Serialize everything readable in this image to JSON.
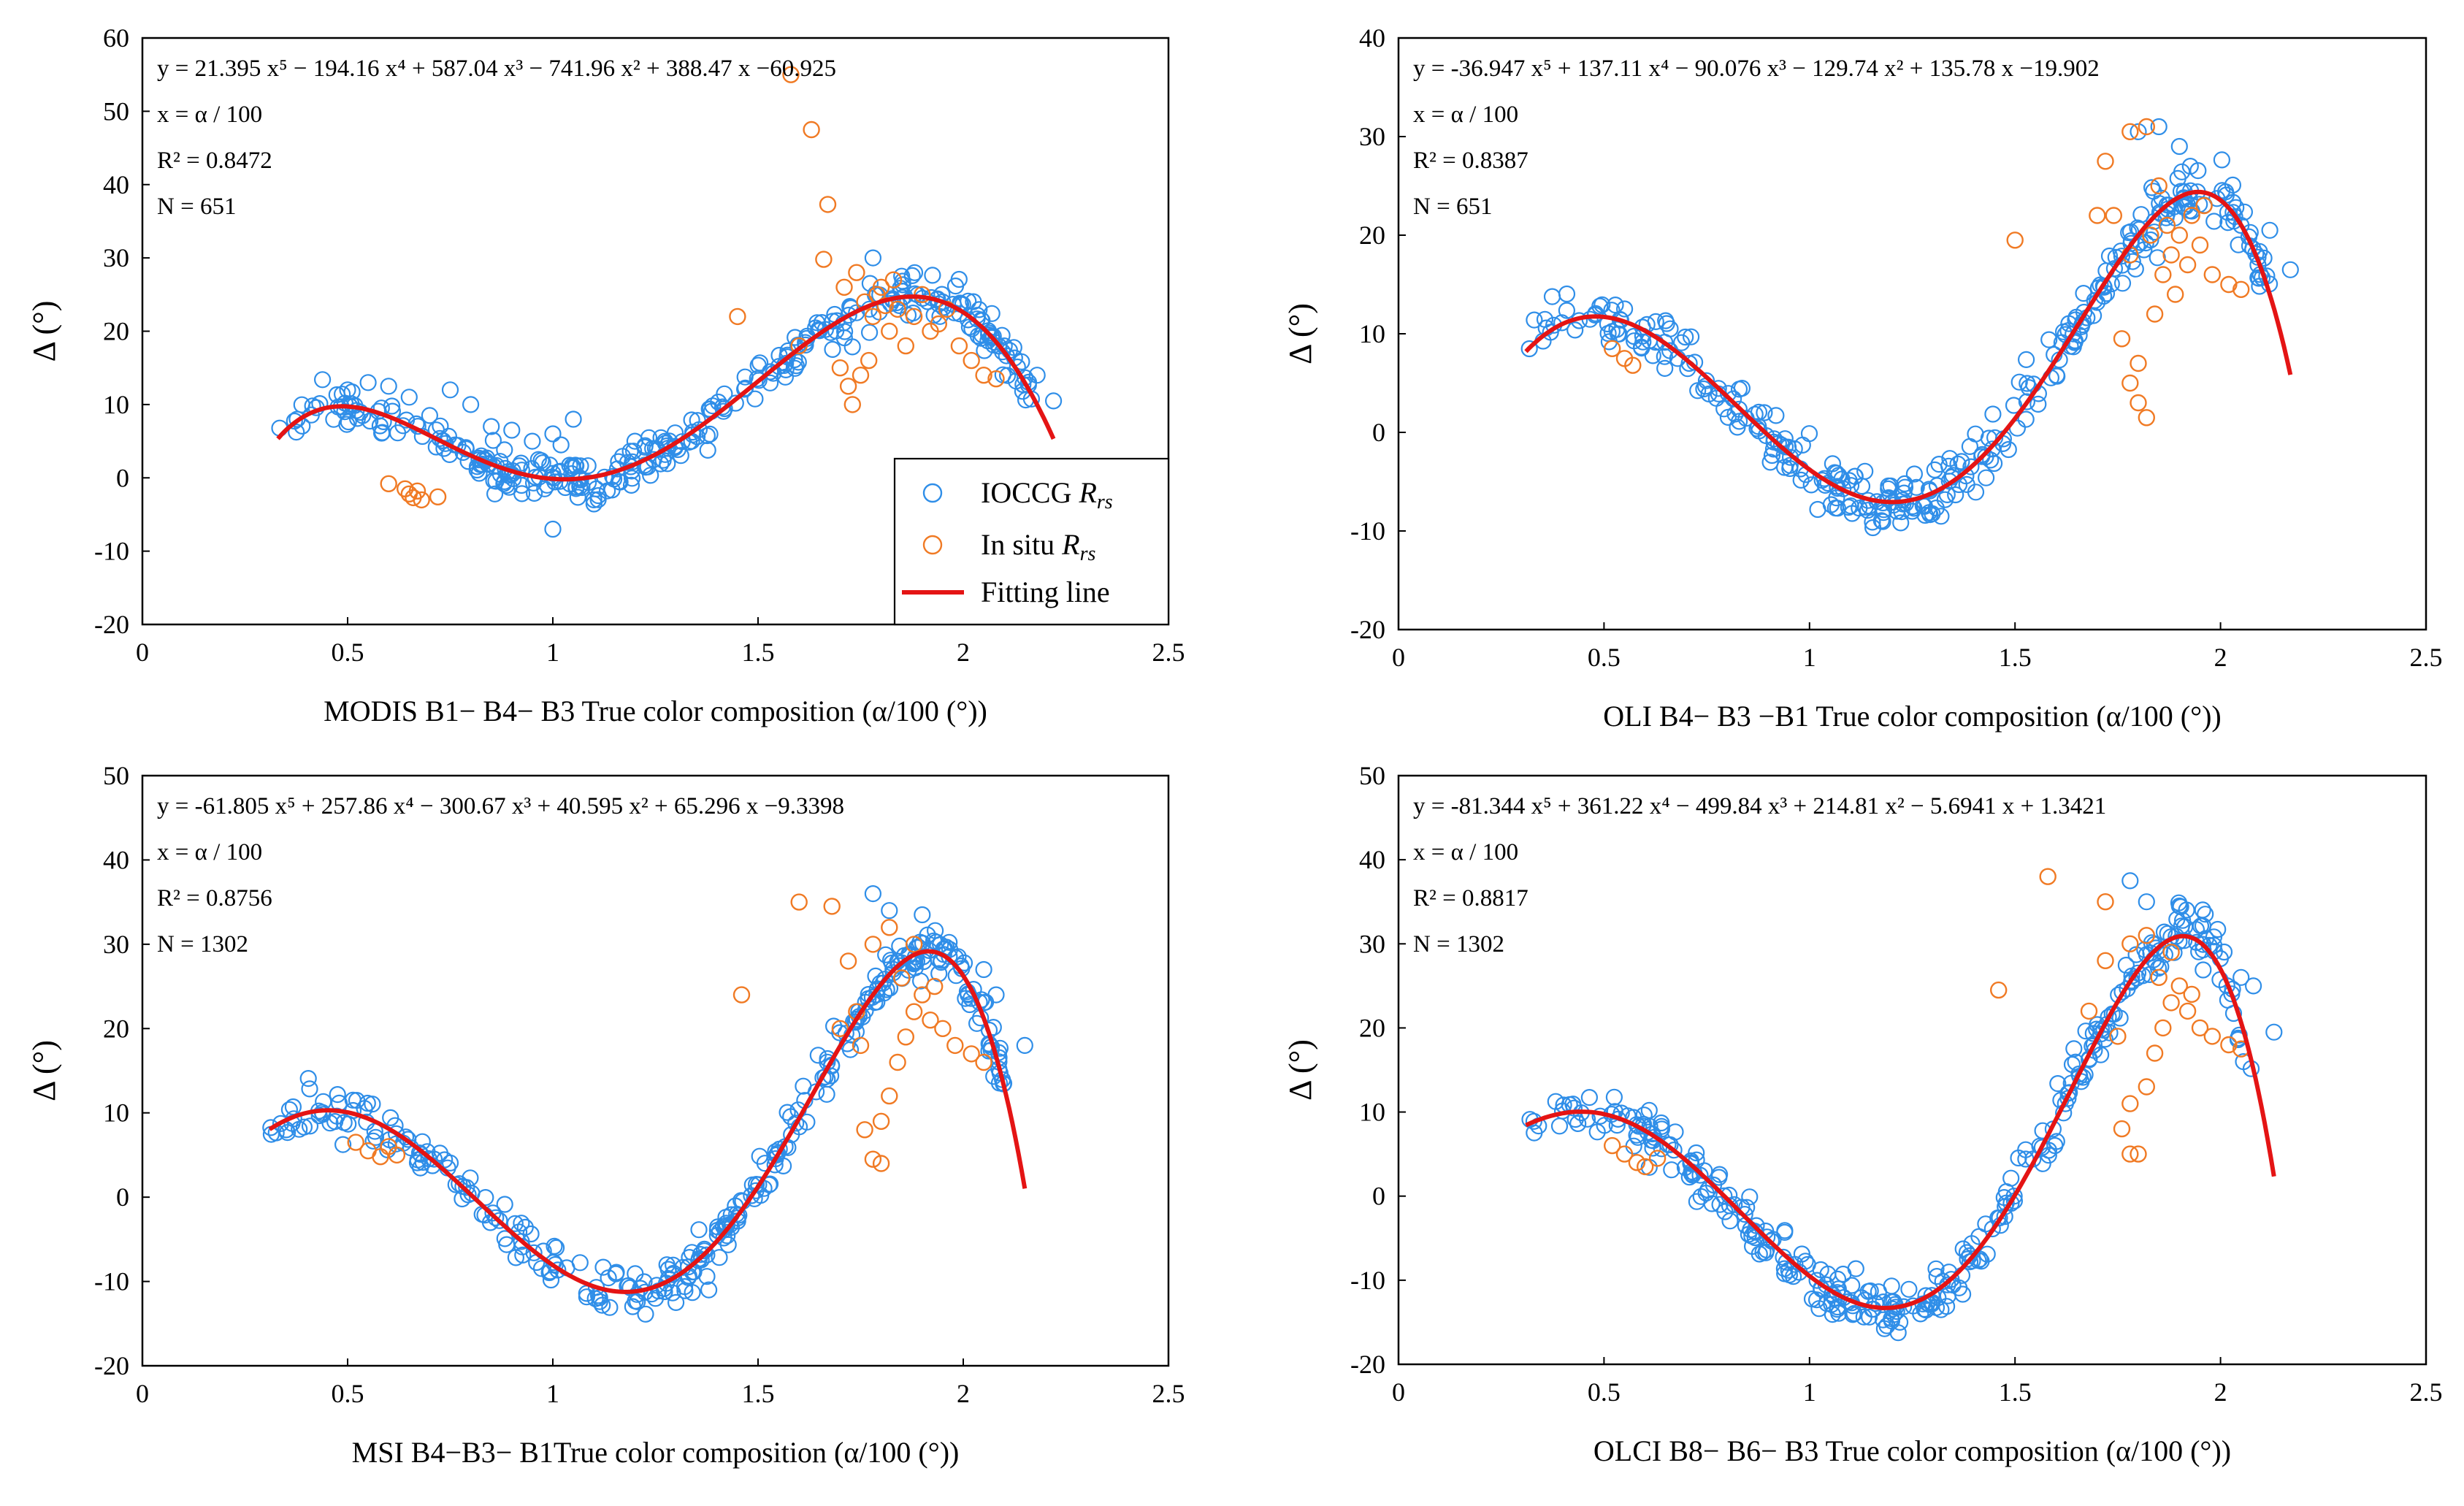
{
  "colors": {
    "ioccg": "#2f8ee8",
    "insitu": "#f07a24",
    "fit": "#e41414"
  },
  "legend": {
    "ioccg": "IOCCG ",
    "insitu": "In situ ",
    "rrs_r": "R",
    "rrs_sub": "rs",
    "fit": "Fitting line"
  },
  "chart_data": [
    {
      "type": "scatter",
      "title": "MODIS",
      "xlabel": "MODIS B1− B4− B3 True color composition (α/100 (°))",
      "ylabel": "Δ (°)",
      "xlim": [
        0,
        2.5
      ],
      "ylim": [
        -20,
        60
      ],
      "xticks": [
        "0",
        "0.5",
        "1",
        "1.5",
        "2",
        "2.5"
      ],
      "yticks": [
        "-20",
        "-10",
        "0",
        "10",
        "20",
        "30",
        "40",
        "50",
        "60"
      ],
      "coef": [
        -60.925,
        388.47,
        -741.96,
        587.04,
        -194.16,
        21.395
      ],
      "fit_range": [
        0.33,
        2.22
      ],
      "annotation": {
        "equation": "y = 21.395 x⁵ − 194.16 x⁴ + 587.04 x³ − 741.96 x² + 388.47 x −60.925",
        "x_def": "x = α / 100",
        "r2": "R² = 0.8472",
        "n": "N = 651"
      },
      "show_legend": true,
      "insitu_points": [
        [
          0.6,
          -0.8
        ],
        [
          0.64,
          -1.5
        ],
        [
          0.65,
          -2.2
        ],
        [
          0.66,
          -2.7
        ],
        [
          0.67,
          -1.8
        ],
        [
          0.68,
          -3.0
        ],
        [
          0.72,
          -2.6
        ],
        [
          1.63,
          47.5
        ],
        [
          1.58,
          55.0
        ],
        [
          1.67,
          37.3
        ],
        [
          1.66,
          29.8
        ],
        [
          1.45,
          22.0
        ],
        [
          1.6,
          18.0
        ],
        [
          1.7,
          15.0
        ],
        [
          1.72,
          12.5
        ],
        [
          1.73,
          10.0
        ],
        [
          1.75,
          14.0
        ],
        [
          1.71,
          26.0
        ],
        [
          1.74,
          28.0
        ],
        [
          1.76,
          24.0
        ],
        [
          1.78,
          22.0
        ],
        [
          1.8,
          26.0
        ],
        [
          1.82,
          20.0
        ],
        [
          1.84,
          23.0
        ],
        [
          1.86,
          18.0
        ],
        [
          1.88,
          22.0
        ],
        [
          1.9,
          25.0
        ],
        [
          1.92,
          20.0
        ],
        [
          1.94,
          21.0
        ],
        [
          1.96,
          23.0
        ],
        [
          1.99,
          18.0
        ],
        [
          2.02,
          16.0
        ],
        [
          2.05,
          14.0
        ],
        [
          2.08,
          13.5
        ],
        [
          1.79,
          25.0
        ],
        [
          1.83,
          27.0
        ],
        [
          1.77,
          16.0
        ],
        [
          1.81,
          23.5
        ]
      ],
      "ioccg_extra": [
        [
          0.5,
          12.0
        ],
        [
          0.55,
          13.0
        ],
        [
          0.6,
          12.5
        ],
        [
          0.65,
          11.0
        ],
        [
          0.7,
          8.5
        ],
        [
          0.75,
          12.0
        ],
        [
          0.8,
          10.0
        ],
        [
          0.85,
          7.0
        ],
        [
          0.9,
          6.5
        ],
        [
          0.95,
          5.0
        ],
        [
          1.0,
          6.0
        ],
        [
          1.02,
          4.5
        ],
        [
          1.05,
          8.0
        ],
        [
          1.0,
          -7.0
        ],
        [
          0.98,
          -1.5
        ],
        [
          1.1,
          -3.0
        ],
        [
          1.78,
          30.0
        ],
        [
          1.85,
          27.5
        ],
        [
          2.1,
          18.0
        ],
        [
          2.18,
          14.0
        ],
        [
          2.22,
          10.5
        ],
        [
          1.2,
          5.0
        ],
        [
          1.25,
          4.0
        ]
      ]
    },
    {
      "type": "scatter",
      "title": "OLI",
      "xlabel": "OLI B4− B3 −B1 True color composition (α/100 (°))",
      "ylabel": "Δ (°)",
      "xlim": [
        0,
        2.5
      ],
      "ylim": [
        -20,
        40
      ],
      "xticks": [
        "0",
        "0.5",
        "1",
        "1.5",
        "2",
        "2.5"
      ],
      "yticks": [
        "-20",
        "-10",
        "0",
        "10",
        "20",
        "30",
        "40"
      ],
      "coef": [
        -19.902,
        135.78,
        -129.74,
        -90.076,
        137.11,
        -36.947
      ],
      "fit_range": [
        0.31,
        2.17
      ],
      "annotation": {
        "equation": "y = -36.947 x⁵ + 137.11 x⁴ − 90.076 x³ − 129.74 x² + 135.78 x −19.902",
        "x_def": "x = α / 100",
        "r2": "R² = 0.8387",
        "n": "N = 651"
      },
      "show_legend": false,
      "insitu_points": [
        [
          0.52,
          8.5
        ],
        [
          0.55,
          7.5
        ],
        [
          0.57,
          6.8
        ],
        [
          1.5,
          19.5
        ],
        [
          1.78,
          30.5
        ],
        [
          1.82,
          31.0
        ],
        [
          1.72,
          27.5
        ],
        [
          1.74,
          22.0
        ],
        [
          1.76,
          9.5
        ],
        [
          1.78,
          5.0
        ],
        [
          1.8,
          3.0
        ],
        [
          1.82,
          1.5
        ],
        [
          1.8,
          7.0
        ],
        [
          1.84,
          12.0
        ],
        [
          1.86,
          16.0
        ],
        [
          1.88,
          18.0
        ],
        [
          1.9,
          20.0
        ],
        [
          1.92,
          17.0
        ],
        [
          1.95,
          19.0
        ],
        [
          1.98,
          16.0
        ],
        [
          2.02,
          15.0
        ],
        [
          2.05,
          14.5
        ],
        [
          1.7,
          22.0
        ],
        [
          1.85,
          25.0
        ],
        [
          1.87,
          21.0
        ],
        [
          1.93,
          22.0
        ],
        [
          1.78,
          18.0
        ],
        [
          1.83,
          20.0
        ],
        [
          1.89,
          14.0
        ],
        [
          1.96,
          23.0
        ]
      ],
      "ioccg_extra": [
        [
          1.8,
          30.5
        ],
        [
          1.85,
          31.0
        ],
        [
          1.9,
          29.0
        ],
        [
          2.05,
          21.0
        ],
        [
          2.12,
          20.5
        ],
        [
          2.17,
          16.5
        ],
        [
          1.25,
          -8.0
        ],
        [
          1.28,
          -7.5
        ],
        [
          1.32,
          -8.5
        ]
      ]
    },
    {
      "type": "scatter",
      "title": "MSI",
      "xlabel": "MSI B4−B3− B1True color composition (α/100 (°))",
      "ylabel": "Δ (°)",
      "xlim": [
        0,
        2.5
      ],
      "ylim": [
        -20,
        50
      ],
      "xticks": [
        "0",
        "0.5",
        "1",
        "1.5",
        "2",
        "2.5"
      ],
      "yticks": [
        "-20",
        "-10",
        "0",
        "10",
        "20",
        "30",
        "40",
        "50"
      ],
      "coef": [
        -9.3398,
        65.296,
        40.595,
        -300.67,
        257.86,
        -61.805
      ],
      "fit_range": [
        0.31,
        2.15
      ],
      "annotation": {
        "equation": "y = -61.805 x⁵ + 257.86 x⁴ − 300.67 x³ + 40.595 x² + 65.296 x −9.3398",
        "x_def": "x = α / 100",
        "r2": "R² = 0.8756",
        "n": "N = 1302"
      },
      "show_legend": false,
      "insitu_points": [
        [
          0.52,
          6.5
        ],
        [
          0.55,
          5.5
        ],
        [
          0.58,
          4.8
        ],
        [
          0.6,
          6.0
        ],
        [
          0.62,
          5.0
        ],
        [
          1.46,
          24.0
        ],
        [
          1.6,
          35.0
        ],
        [
          1.68,
          34.5
        ],
        [
          1.74,
          22.0
        ],
        [
          1.76,
          8.0
        ],
        [
          1.78,
          4.5
        ],
        [
          1.8,
          4.0
        ],
        [
          1.8,
          9.0
        ],
        [
          1.82,
          12.0
        ],
        [
          1.84,
          16.0
        ],
        [
          1.86,
          19.0
        ],
        [
          1.88,
          22.0
        ],
        [
          1.9,
          24.0
        ],
        [
          1.92,
          21.0
        ],
        [
          1.95,
          20.0
        ],
        [
          1.98,
          18.0
        ],
        [
          2.02,
          17.0
        ],
        [
          2.05,
          16.0
        ],
        [
          1.7,
          20.0
        ],
        [
          1.72,
          28.0
        ],
        [
          1.78,
          30.0
        ],
        [
          1.82,
          32.0
        ],
        [
          1.85,
          26.0
        ],
        [
          1.75,
          18.0
        ],
        [
          1.88,
          30.0
        ],
        [
          1.93,
          25.0
        ]
      ],
      "ioccg_extra": [
        [
          1.78,
          36.0
        ],
        [
          1.82,
          34.0
        ],
        [
          1.9,
          33.5
        ],
        [
          2.05,
          27.0
        ],
        [
          2.08,
          24.0
        ],
        [
          2.15,
          18.0
        ],
        [
          1.25,
          -12.0
        ],
        [
          1.3,
          -12.5
        ],
        [
          1.38,
          -11.0
        ]
      ]
    },
    {
      "type": "scatter",
      "title": "OLCI",
      "xlabel": "OLCI B8− B6− B3 True color composition (α/100 (°))",
      "ylabel": "Δ (°)",
      "xlim": [
        0,
        2.5
      ],
      "ylim": [
        -20,
        50
      ],
      "xticks": [
        "0",
        "0.5",
        "1",
        "1.5",
        "2",
        "2.5"
      ],
      "yticks": [
        "-20",
        "-10",
        "0",
        "10",
        "20",
        "30",
        "40",
        "50"
      ],
      "coef": [
        1.3421,
        -5.6941,
        214.81,
        -499.84,
        361.22,
        -81.344
      ],
      "fit_range": [
        0.31,
        2.13
      ],
      "annotation": {
        "equation": "y = -81.344 x⁵ + 361.22 x⁴ − 499.84 x³ + 214.81 x² − 5.6941 x + 1.3421",
        "x_def": "x = α / 100",
        "r2": "R² = 0.8817",
        "n": "N = 1302"
      },
      "show_legend": false,
      "insitu_points": [
        [
          0.52,
          6.0
        ],
        [
          0.55,
          5.0
        ],
        [
          0.58,
          4.0
        ],
        [
          0.6,
          3.5
        ],
        [
          0.63,
          4.5
        ],
        [
          1.46,
          24.5
        ],
        [
          1.58,
          38.0
        ],
        [
          1.72,
          35.0
        ],
        [
          1.76,
          8.0
        ],
        [
          1.78,
          5.0
        ],
        [
          1.8,
          5.0
        ],
        [
          1.78,
          11.0
        ],
        [
          1.82,
          13.0
        ],
        [
          1.84,
          17.0
        ],
        [
          1.86,
          20.0
        ],
        [
          1.88,
          23.0
        ],
        [
          1.9,
          25.0
        ],
        [
          1.92,
          22.0
        ],
        [
          1.95,
          20.0
        ],
        [
          1.98,
          19.0
        ],
        [
          2.02,
          18.0
        ],
        [
          2.05,
          17.5
        ],
        [
          1.68,
          22.0
        ],
        [
          1.72,
          28.0
        ],
        [
          1.78,
          30.0
        ],
        [
          1.82,
          31.0
        ],
        [
          1.85,
          26.0
        ],
        [
          1.75,
          19.0
        ],
        [
          1.88,
          29.0
        ],
        [
          1.93,
          24.0
        ]
      ],
      "ioccg_extra": [
        [
          1.78,
          37.5
        ],
        [
          1.82,
          35.0
        ],
        [
          1.9,
          34.5
        ],
        [
          2.05,
          26.0
        ],
        [
          2.08,
          25.0
        ],
        [
          2.13,
          19.5
        ],
        [
          1.22,
          -15.0
        ],
        [
          1.27,
          -14.0
        ],
        [
          1.32,
          -13.5
        ]
      ]
    }
  ]
}
